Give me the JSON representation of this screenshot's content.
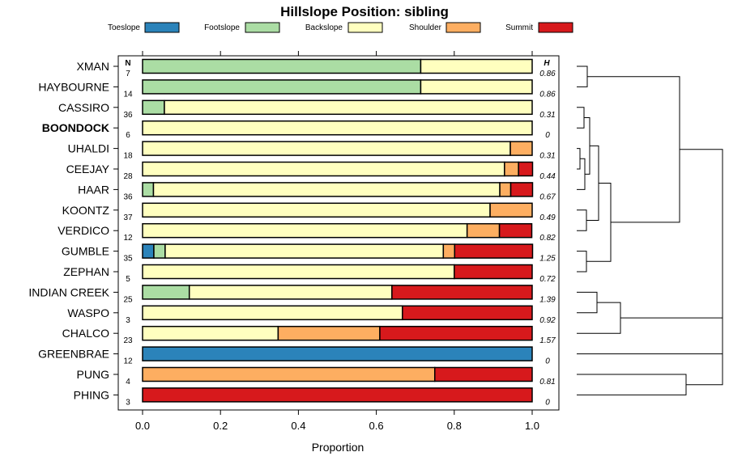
{
  "chart_data": {
    "type": "bar",
    "orientation": "horizontal-stacked",
    "title": "Hillslope Position: sibling",
    "xlabel": "Proportion",
    "xlim": [
      0,
      1
    ],
    "xticks": [
      "0.0",
      "0.2",
      "0.4",
      "0.6",
      "0.8",
      "1.0"
    ],
    "n_header": "N",
    "h_header": "H",
    "legend": [
      {
        "name": "Toeslope",
        "color": "#2B83BA"
      },
      {
        "name": "Footslope",
        "color": "#ABDDA4"
      },
      {
        "name": "Backslope",
        "color": "#FFFFBF"
      },
      {
        "name": "Shoulder",
        "color": "#FDAE61"
      },
      {
        "name": "Summit",
        "color": "#D7191C"
      }
    ],
    "rows": [
      {
        "name": "XMAN",
        "n": "7",
        "h": "0.86",
        "bold": false,
        "values": [
          0,
          0.714,
          0.286,
          0,
          0
        ]
      },
      {
        "name": "HAYBOURNE",
        "n": "14",
        "h": "0.86",
        "bold": false,
        "values": [
          0,
          0.714,
          0.286,
          0,
          0
        ]
      },
      {
        "name": "CASSIRO",
        "n": "36",
        "h": "0.31",
        "bold": false,
        "values": [
          0,
          0.056,
          0.944,
          0,
          0
        ]
      },
      {
        "name": "BOONDOCK",
        "n": "6",
        "h": "0",
        "bold": true,
        "values": [
          0,
          0,
          1,
          0,
          0
        ]
      },
      {
        "name": "UHALDI",
        "n": "18",
        "h": "0.31",
        "bold": false,
        "values": [
          0,
          0,
          0.944,
          0.056,
          0
        ]
      },
      {
        "name": "CEEJAY",
        "n": "28",
        "h": "0.44",
        "bold": false,
        "values": [
          0,
          0,
          0.929,
          0.036,
          0.036
        ]
      },
      {
        "name": "HAAR",
        "n": "36",
        "h": "0.67",
        "bold": false,
        "values": [
          0,
          0.028,
          0.889,
          0.028,
          0.056
        ]
      },
      {
        "name": "KOONTZ",
        "n": "37",
        "h": "0.49",
        "bold": false,
        "values": [
          0,
          0,
          0.892,
          0.108,
          0
        ]
      },
      {
        "name": "VERDICO",
        "n": "12",
        "h": "0.82",
        "bold": false,
        "values": [
          0,
          0,
          0.833,
          0.083,
          0.083
        ]
      },
      {
        "name": "GUMBLE",
        "n": "35",
        "h": "1.25",
        "bold": false,
        "values": [
          0.029,
          0.029,
          0.714,
          0.029,
          0.2
        ]
      },
      {
        "name": "ZEPHAN",
        "n": "5",
        "h": "0.72",
        "bold": false,
        "values": [
          0,
          0,
          0.8,
          0,
          0.2
        ]
      },
      {
        "name": "INDIAN CREEK",
        "n": "25",
        "h": "1.39",
        "bold": false,
        "values": [
          0,
          0.12,
          0.52,
          0,
          0.36
        ]
      },
      {
        "name": "WASPO",
        "n": "3",
        "h": "0.92",
        "bold": false,
        "values": [
          0,
          0,
          0.667,
          0,
          0.333
        ]
      },
      {
        "name": "CHALCO",
        "n": "23",
        "h": "1.57",
        "bold": false,
        "values": [
          0,
          0,
          0.348,
          0.261,
          0.391
        ]
      },
      {
        "name": "GREENBRAE",
        "n": "12",
        "h": "0",
        "bold": false,
        "values": [
          1,
          0,
          0,
          0,
          0
        ]
      },
      {
        "name": "PUNG",
        "n": "4",
        "h": "0.81",
        "bold": false,
        "values": [
          0,
          0,
          0,
          0.75,
          0.25
        ]
      },
      {
        "name": "PHING",
        "n": "3",
        "h": "0",
        "bold": false,
        "values": [
          0,
          0,
          0,
          0,
          1
        ]
      }
    ]
  }
}
